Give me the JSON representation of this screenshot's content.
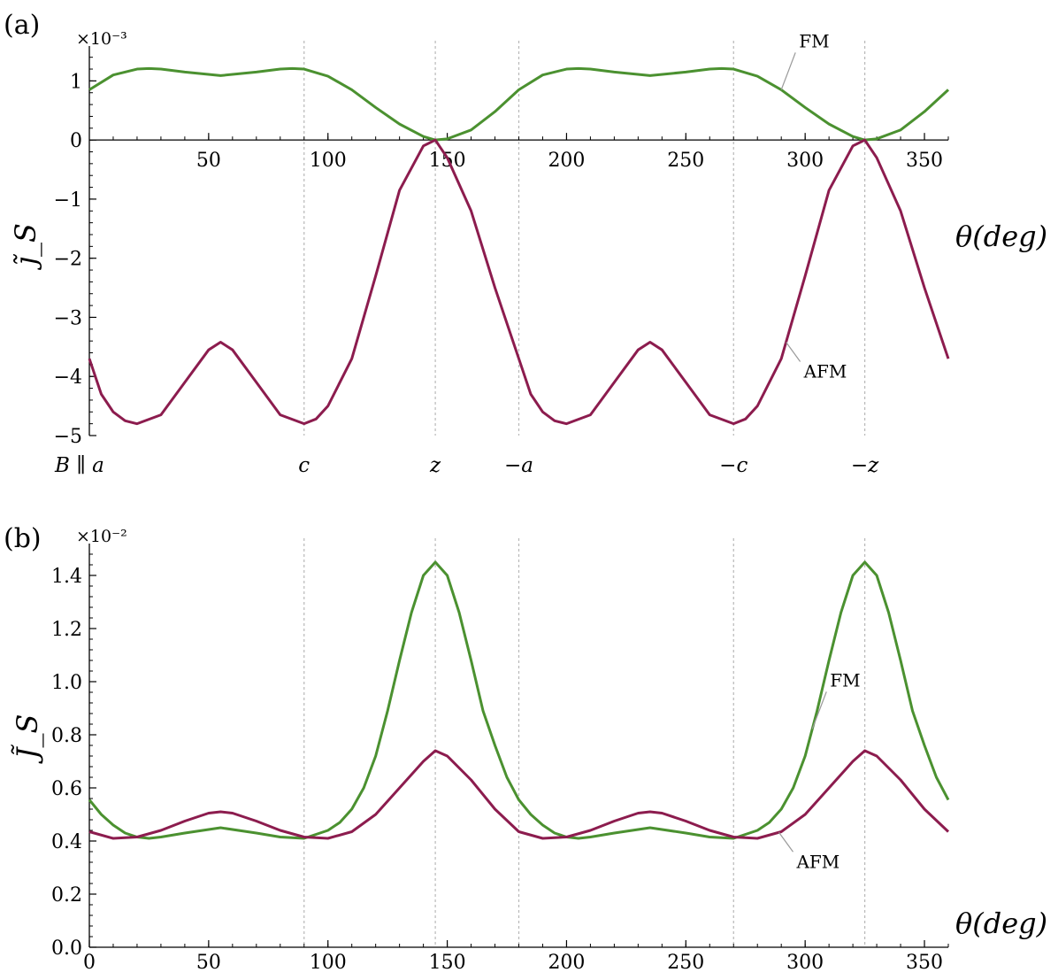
{
  "colors": {
    "FM": "#4b9130",
    "AFM": "#8c1c4e",
    "guide": "#b8b8b8",
    "callout": "#9a9a9a"
  },
  "chart_data": [
    {
      "type": "line",
      "panel_label": "(a)",
      "ylabel": "j̃_S",
      "xlabel": "θ(deg)",
      "y_multiplier": "×10⁻³",
      "xlim": [
        0,
        360
      ],
      "ylim": [
        -5,
        1.5
      ],
      "x_ticks": [
        50,
        100,
        150,
        200,
        250,
        300,
        350
      ],
      "y_ticks": [
        1,
        0,
        -1,
        -2,
        -3,
        -4,
        -5
      ],
      "y_tick_labels": [
        "1",
        "0",
        "−1",
        "−2",
        "−3",
        "−4",
        "−5"
      ],
      "x_axis_at_y": 0,
      "vertical_guides": [
        90,
        145,
        180,
        270,
        325
      ],
      "field_directions": [
        {
          "x": 0,
          "label": "B ∥ a"
        },
        {
          "x": 90,
          "label": "c"
        },
        {
          "x": 145,
          "label": "z"
        },
        {
          "x": 180,
          "label": "−a"
        },
        {
          "x": 270,
          "label": "−c"
        },
        {
          "x": 325,
          "label": "−z"
        }
      ],
      "series": [
        {
          "name": "FM",
          "x": [
            0,
            10,
            20,
            25,
            30,
            40,
            55,
            70,
            80,
            85,
            90,
            100,
            110,
            120,
            130,
            140,
            145,
            150,
            160,
            170,
            180,
            190,
            200,
            205,
            210,
            220,
            235,
            250,
            260,
            265,
            270,
            280,
            290,
            300,
            310,
            320,
            325,
            330,
            340,
            350,
            360
          ],
          "y": [
            0.85,
            1.1,
            1.2,
            1.21,
            1.2,
            1.15,
            1.09,
            1.15,
            1.2,
            1.21,
            1.2,
            1.08,
            0.85,
            0.55,
            0.27,
            0.06,
            0.0,
            0.02,
            0.17,
            0.48,
            0.85,
            1.1,
            1.2,
            1.21,
            1.2,
            1.15,
            1.09,
            1.15,
            1.2,
            1.21,
            1.2,
            1.08,
            0.85,
            0.55,
            0.27,
            0.06,
            0.0,
            0.02,
            0.17,
            0.48,
            0.85
          ]
        },
        {
          "name": "AFM",
          "x": [
            0,
            5,
            10,
            15,
            20,
            30,
            40,
            50,
            55,
            60,
            70,
            80,
            90,
            95,
            100,
            110,
            120,
            130,
            140,
            145,
            150,
            160,
            170,
            180,
            185,
            190,
            195,
            200,
            210,
            220,
            230,
            235,
            240,
            250,
            260,
            270,
            275,
            280,
            290,
            300,
            310,
            320,
            325,
            330,
            340,
            350,
            360
          ],
          "y": [
            -3.7,
            -4.3,
            -4.6,
            -4.75,
            -4.8,
            -4.65,
            -4.1,
            -3.55,
            -3.42,
            -3.55,
            -4.1,
            -4.65,
            -4.8,
            -4.72,
            -4.5,
            -3.7,
            -2.3,
            -0.85,
            -0.1,
            0.0,
            -0.3,
            -1.2,
            -2.5,
            -3.7,
            -4.3,
            -4.6,
            -4.75,
            -4.8,
            -4.65,
            -4.1,
            -3.55,
            -3.42,
            -3.55,
            -4.1,
            -4.65,
            -4.8,
            -4.72,
            -4.5,
            -3.7,
            -2.3,
            -0.85,
            -0.1,
            0.0,
            -0.3,
            -1.2,
            -2.5,
            -3.7
          ]
        }
      ],
      "series_labels": [
        {
          "name": "FM",
          "text": "FM",
          "anchor_series": "FM",
          "anchor_x": 290
        },
        {
          "name": "AFM",
          "text": "AFM",
          "anchor_series": "AFM",
          "anchor_x": 292
        }
      ]
    },
    {
      "type": "line",
      "panel_label": "(b)",
      "ylabel": "J̃_S",
      "xlabel": "θ(deg)",
      "y_multiplier": "×10⁻²",
      "xlim": [
        0,
        360
      ],
      "ylim": [
        0,
        1.5
      ],
      "x_ticks": [
        0,
        50,
        100,
        150,
        200,
        250,
        300,
        350
      ],
      "y_ticks": [
        0.0,
        0.2,
        0.4,
        0.6,
        0.8,
        1.0,
        1.2,
        1.4
      ],
      "y_tick_labels": [
        "0.0",
        "0.2",
        "0.4",
        "0.6",
        "0.8",
        "1.0",
        "1.2",
        "1.4"
      ],
      "x_axis_at_y": 0,
      "vertical_guides": [
        90,
        145,
        180,
        270,
        325
      ],
      "series": [
        {
          "name": "FM",
          "x": [
            0,
            5,
            10,
            15,
            20,
            25,
            30,
            40,
            55,
            70,
            80,
            90,
            100,
            105,
            110,
            115,
            120,
            125,
            130,
            135,
            140,
            145,
            150,
            155,
            160,
            165,
            170,
            175,
            180,
            185,
            190,
            195,
            200,
            205,
            210,
            220,
            235,
            250,
            260,
            270,
            280,
            285,
            290,
            295,
            300,
            305,
            310,
            315,
            320,
            325,
            330,
            335,
            340,
            345,
            350,
            355,
            360
          ],
          "y": [
            0.555,
            0.5,
            0.46,
            0.43,
            0.415,
            0.41,
            0.415,
            0.43,
            0.45,
            0.43,
            0.415,
            0.41,
            0.44,
            0.47,
            0.52,
            0.6,
            0.72,
            0.89,
            1.08,
            1.26,
            1.4,
            1.45,
            1.4,
            1.26,
            1.08,
            0.89,
            0.76,
            0.64,
            0.555,
            0.5,
            0.46,
            0.43,
            0.415,
            0.41,
            0.415,
            0.43,
            0.45,
            0.43,
            0.415,
            0.41,
            0.44,
            0.47,
            0.52,
            0.6,
            0.72,
            0.89,
            1.08,
            1.26,
            1.4,
            1.45,
            1.4,
            1.26,
            1.08,
            0.89,
            0.76,
            0.64,
            0.555
          ]
        },
        {
          "name": "AFM",
          "x": [
            0,
            10,
            20,
            30,
            40,
            50,
            55,
            60,
            70,
            80,
            90,
            100,
            110,
            120,
            130,
            140,
            145,
            150,
            160,
            170,
            180,
            190,
            200,
            210,
            220,
            230,
            235,
            240,
            250,
            260,
            270,
            280,
            290,
            300,
            310,
            320,
            325,
            330,
            340,
            350,
            360
          ],
          "y": [
            0.435,
            0.41,
            0.415,
            0.44,
            0.475,
            0.505,
            0.51,
            0.505,
            0.475,
            0.44,
            0.415,
            0.41,
            0.435,
            0.5,
            0.6,
            0.7,
            0.74,
            0.72,
            0.63,
            0.52,
            0.435,
            0.41,
            0.415,
            0.44,
            0.475,
            0.505,
            0.51,
            0.505,
            0.475,
            0.44,
            0.415,
            0.41,
            0.435,
            0.5,
            0.6,
            0.7,
            0.74,
            0.72,
            0.63,
            0.52,
            0.435
          ]
        }
      ],
      "series_labels": [
        {
          "name": "FM",
          "text": "FM",
          "anchor_series": "FM",
          "anchor_x": 303
        },
        {
          "name": "AFM",
          "text": "AFM",
          "anchor_series": "AFM",
          "anchor_x": 289
        }
      ]
    }
  ]
}
